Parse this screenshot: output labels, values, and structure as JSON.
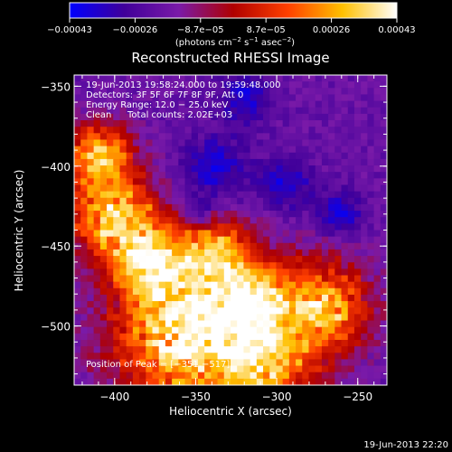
{
  "chart_data": {
    "type": "heatmap",
    "title": "Reconstructed RHESSI Image",
    "xlabel": "Heliocentric X (arcsec)",
    "ylabel": "Heliocentric Y (arcsec)",
    "xlim": [
      -425,
      -232
    ],
    "ylim": [
      -537,
      -343
    ],
    "x_ticks": [
      -400,
      -350,
      -300,
      -250
    ],
    "x_tick_labels": [
      "−400",
      "−350",
      "−300",
      "−250"
    ],
    "y_ticks": [
      -350,
      -400,
      -450,
      -500
    ],
    "y_tick_labels": [
      "−350",
      "−400",
      "−450",
      "−500"
    ],
    "colorbar": {
      "min": -0.00043,
      "max": 0.00043,
      "tick_labels": [
        "−0.00043",
        "−0.00026",
        "−8.7e−05",
        "8.7e−05",
        "0.00026",
        "0.00043"
      ],
      "unit_main": "(photons cm",
      "unit_exp1": "−2",
      "unit_mid": " s",
      "unit_exp2": "−1",
      "unit_end": " asec",
      "unit_exp3": "−2",
      "unit_close": ")",
      "colormap": [
        "#0000ff",
        "#40009a",
        "#7a1aa8",
        "#b00000",
        "#ff4000",
        "#ffc000",
        "#ffffff"
      ]
    },
    "annotations": {
      "time_range": "19-Jun-2013 19:58:24.000 to 19:59:48.000",
      "detectors": "Detectors: 3F 5F 6F 7F 8F 9F, Att 0",
      "energy": "Energy Range: 12.0 − 25.0 keV",
      "method": "Clean",
      "counts": "Total counts: 2.02E+03",
      "peak": "Position of Peak = [−351,−517]"
    },
    "peak_position": [
      -351,
      -517
    ]
  },
  "footer": {
    "timestamp": "19-Jun-2013 22:20"
  }
}
